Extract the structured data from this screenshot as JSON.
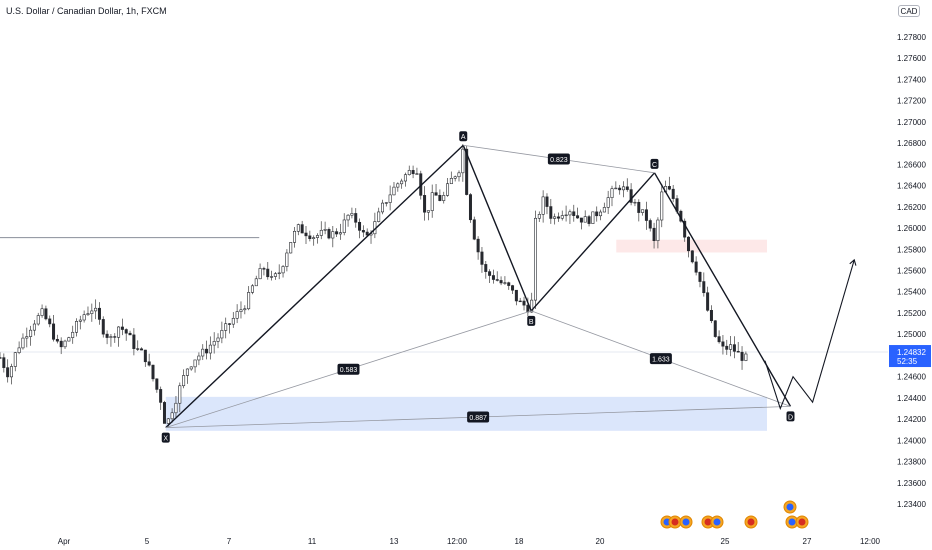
{
  "header": {
    "title": "U.S. Dollar / Canadian Dollar, 1h, FXCM",
    "currency_badge": "CAD"
  },
  "price_axis": {
    "ticks": [
      "1.27800",
      "1.27600",
      "1.27400",
      "1.27200",
      "1.27000",
      "1.26800",
      "1.26600",
      "1.26400",
      "1.26200",
      "1.26000",
      "1.25800",
      "1.25600",
      "1.25400",
      "1.25200",
      "1.25000",
      "1.24800",
      "1.24600",
      "1.24400",
      "1.24200",
      "1.24000",
      "1.23800",
      "1.23600",
      "1.23400"
    ],
    "current_price": "1.24832",
    "countdown": "52:35",
    "current_color": "#2962ff"
  },
  "time_axis": {
    "ticks": [
      "Apr",
      "5",
      "7",
      "11",
      "13",
      "12:00",
      "18",
      "20",
      "25",
      "27",
      "12:00"
    ]
  },
  "chart_data": {
    "type": "candlestick",
    "ylim": [
      1.2325,
      1.2795
    ],
    "pattern": {
      "points": [
        {
          "label": "X",
          "x": 19.5,
          "y": 1.2412
        },
        {
          "label": "A",
          "x": 54.5,
          "y": 1.2678
        },
        {
          "label": "B",
          "x": 62.5,
          "y": 1.2522
        },
        {
          "label": "C",
          "x": 77.0,
          "y": 1.2652
        },
        {
          "label": "D",
          "x": 93.0,
          "y": 1.2432
        }
      ],
      "ratios": [
        {
          "label": "0.823",
          "between": [
            "A",
            "C"
          ]
        },
        {
          "label": "0.583",
          "between": [
            "X",
            "B"
          ]
        },
        {
          "label": "1.633",
          "between": [
            "B",
            "D"
          ]
        },
        {
          "label": "0.887",
          "between": [
            "X",
            "D"
          ]
        }
      ]
    },
    "zones": [
      {
        "name": "target-zone",
        "y_top": 1.2441,
        "y_bottom": 1.2409,
        "color": "#dbe6fb"
      },
      {
        "name": "stop-zone",
        "y_top": 1.2589,
        "y_bottom": 1.2577,
        "color": "#fde8e8"
      }
    ],
    "horizontal_line": 1.2591,
    "projection": [
      {
        "x": 90.0,
        "y": 1.2475
      },
      {
        "x": 91.8,
        "y": 1.243
      },
      {
        "x": 93.3,
        "y": 1.246
      },
      {
        "x": 95.6,
        "y": 1.2436
      },
      {
        "x": 100.5,
        "y": 1.257
      }
    ],
    "price_path": [
      [
        0,
        1.2478
      ],
      [
        1,
        1.2462
      ],
      [
        2,
        1.2486
      ],
      [
        3,
        1.25
      ],
      [
        4,
        1.2512
      ],
      [
        5,
        1.252
      ],
      [
        6,
        1.2505
      ],
      [
        7,
        1.2485
      ],
      [
        8,
        1.2496
      ],
      [
        9,
        1.2508
      ],
      [
        10,
        1.252
      ],
      [
        11,
        1.2525
      ],
      [
        12,
        1.2506
      ],
      [
        13,
        1.2495
      ],
      [
        14,
        1.2508
      ],
      [
        15,
        1.25
      ],
      [
        16,
        1.2486
      ],
      [
        17,
        1.248
      ],
      [
        18,
        1.2458
      ],
      [
        19,
        1.2436
      ],
      [
        19.5,
        1.2412
      ],
      [
        20,
        1.2424
      ],
      [
        21,
        1.2446
      ],
      [
        22,
        1.2468
      ],
      [
        23,
        1.2478
      ],
      [
        24,
        1.2483
      ],
      [
        25,
        1.2492
      ],
      [
        26,
        1.25
      ],
      [
        27,
        1.251
      ],
      [
        28,
        1.252
      ],
      [
        29,
        1.253
      ],
      [
        30,
        1.255
      ],
      [
        31,
        1.2563
      ],
      [
        32,
        1.255
      ],
      [
        33,
        1.256
      ],
      [
        34,
        1.2585
      ],
      [
        35,
        1.26
      ],
      [
        36,
        1.2596
      ],
      [
        37,
        1.2592
      ],
      [
        38,
        1.2595
      ],
      [
        39,
        1.2594
      ],
      [
        40,
        1.2598
      ],
      [
        41,
        1.2612
      ],
      [
        42,
        1.2606
      ],
      [
        43,
        1.259
      ],
      [
        44,
        1.2602
      ],
      [
        45,
        1.262
      ],
      [
        46,
        1.2634
      ],
      [
        47,
        1.2644
      ],
      [
        48,
        1.2652
      ],
      [
        49,
        1.2658
      ],
      [
        50,
        1.2611
      ],
      [
        51,
        1.2632
      ],
      [
        52,
        1.2626
      ],
      [
        53,
        1.2644
      ],
      [
        54,
        1.2656
      ],
      [
        54.5,
        1.2676
      ],
      [
        55,
        1.2625
      ],
      [
        56,
        1.2585
      ],
      [
        57,
        1.2558
      ],
      [
        58,
        1.2554
      ],
      [
        59,
        1.2548
      ],
      [
        60,
        1.2543
      ],
      [
        61,
        1.253
      ],
      [
        62,
        1.2526
      ],
      [
        62.5,
        1.2522
      ],
      [
        63,
        1.2605
      ],
      [
        64,
        1.2628
      ],
      [
        65,
        1.2608
      ],
      [
        66,
        1.2615
      ],
      [
        67,
        1.2618
      ],
      [
        68,
        1.261
      ],
      [
        69,
        1.2607
      ],
      [
        70,
        1.2612
      ],
      [
        71,
        1.2622
      ],
      [
        72,
        1.2633
      ],
      [
        73,
        1.264
      ],
      [
        74,
        1.263
      ],
      [
        75,
        1.2618
      ],
      [
        76,
        1.261
      ],
      [
        77,
        1.2585
      ],
      [
        78,
        1.264
      ],
      [
        79,
        1.2632
      ],
      [
        80,
        1.2612
      ],
      [
        81,
        1.258
      ],
      [
        82,
        1.256
      ],
      [
        83,
        1.253
      ],
      [
        84,
        1.25
      ],
      [
        85,
        1.2486
      ],
      [
        86,
        1.2488
      ],
      [
        87,
        1.248
      ],
      [
        88,
        1.2476
      ]
    ]
  }
}
